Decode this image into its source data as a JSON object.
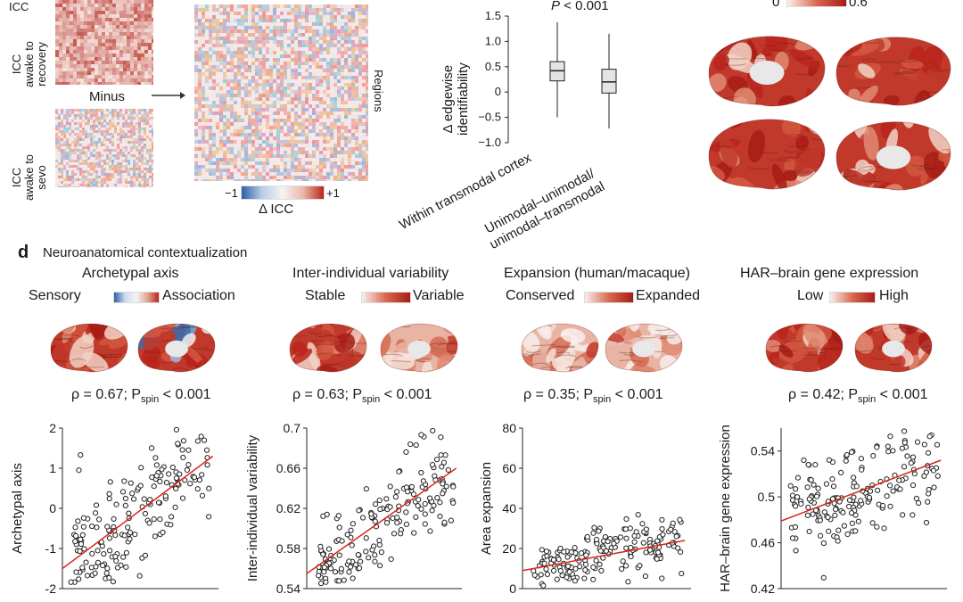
{
  "top": {
    "matrix_labels": {
      "awake_recovery": [
        "ICC",
        "awake to",
        "recovery"
      ],
      "awake_sevo": [
        "ICC",
        "awake to",
        "sevo"
      ],
      "minus": "Minus",
      "regions": "Regions",
      "cbar_min": "−1",
      "cbar_max": "+1",
      "cbar_title": "Δ ICC"
    },
    "boxplot": {
      "p_label": "P",
      "p_rest": " < 0.001",
      "ylabel_line1": "Δ edgewise",
      "ylabel_line2": "identifiability",
      "yticks": [
        "1.5",
        "1.0",
        "0.5",
        "0",
        "−0.5",
        "−1.0"
      ],
      "cat1": "Within transmodal cortex",
      "cat2_line1": "Unimodal–unimodal/",
      "cat2_line2": "unimodal–transmodal"
    },
    "brain_cbar": {
      "min": "0",
      "max": "0.6"
    }
  },
  "panel_d": {
    "letter": "d",
    "title": "Neuroanatomical contextualization",
    "maps": [
      {
        "title": "Archetypal axis",
        "low": "Sensory",
        "high": "Association",
        "rho": "ρ = 0.67; P",
        "sub": "spin",
        "p": " < 0.001"
      },
      {
        "title": "Inter-individual variability",
        "low": "Stable",
        "high": "Variable",
        "rho": "ρ = 0.63; P",
        "sub": "spin",
        "p": " < 0.001"
      },
      {
        "title": "Expansion (human/macaque)",
        "low": "Conserved",
        "high": "Expanded",
        "rho": "ρ = 0.35; P",
        "sub": "spin",
        "p": " < 0.001"
      },
      {
        "title": "HAR–brain gene expression",
        "low": "Low",
        "high": "High",
        "rho": "ρ = 0.42; P",
        "sub": "spin",
        "p": " < 0.001"
      }
    ]
  },
  "chart_data": [
    {
      "type": "box",
      "categories": [
        "Within transmodal cortex",
        "Unimodal–unimodal/unimodal–transmodal"
      ],
      "boxes": [
        {
          "min": -0.5,
          "q1": 0.22,
          "median": 0.42,
          "q3": 0.6,
          "max": 1.38
        },
        {
          "min": -0.72,
          "q1": -0.02,
          "median": 0.2,
          "q3": 0.45,
          "max": 1.15
        }
      ],
      "ylabel": "Δ edgewise identifiability",
      "ylim": [
        -1.0,
        1.5
      ]
    },
    {
      "type": "scatter",
      "ylabel": "Archetypal axis",
      "ylim": [
        -2,
        2
      ],
      "yticks": [
        -2,
        -1,
        0,
        1,
        2
      ],
      "xlim": [
        0.05,
        0.6
      ],
      "fit": [
        [
          0.05,
          -1.5
        ],
        [
          0.58,
          1.3
        ]
      ],
      "n": 180,
      "seed": 11,
      "intercept": -1.75,
      "slope": 5.2,
      "noise": 0.7
    },
    {
      "type": "scatter",
      "ylabel": "Inter-individual variability",
      "ylim": [
        0.54,
        0.7
      ],
      "yticks": [
        0.54,
        0.58,
        0.62,
        0.66,
        0.7
      ],
      "xlim": [
        0.05,
        0.6
      ],
      "fit": [
        [
          0.05,
          0.555
        ],
        [
          0.58,
          0.66
        ]
      ],
      "n": 180,
      "seed": 23,
      "intercept": 0.545,
      "slope": 0.2,
      "noise": 0.022
    },
    {
      "type": "scatter",
      "ylabel": "Area expansion",
      "ylim": [
        0,
        80
      ],
      "yticks": [
        0,
        20,
        40,
        60,
        80
      ],
      "xlim": [
        0.05,
        0.6
      ],
      "fit": [
        [
          0.05,
          9
        ],
        [
          0.58,
          24
        ]
      ],
      "n": 180,
      "seed": 37,
      "intercept": 7,
      "slope": 30,
      "noise": 7
    },
    {
      "type": "scatter",
      "ylabel": "HAR–brain gene expression",
      "ylim": [
        0.42,
        0.56
      ],
      "yticks": [
        0.42,
        0.46,
        0.5,
        0.54
      ],
      "xlim": [
        0.05,
        0.6
      ],
      "fit": [
        [
          0.05,
          0.479
        ],
        [
          0.58,
          0.532
        ]
      ],
      "n": 180,
      "seed": 51,
      "intercept": 0.474,
      "slope": 0.1,
      "noise": 0.02
    }
  ],
  "colors": {
    "red": "#c0392b",
    "blue": "#3a6fb0",
    "fit": "#d9261c"
  }
}
